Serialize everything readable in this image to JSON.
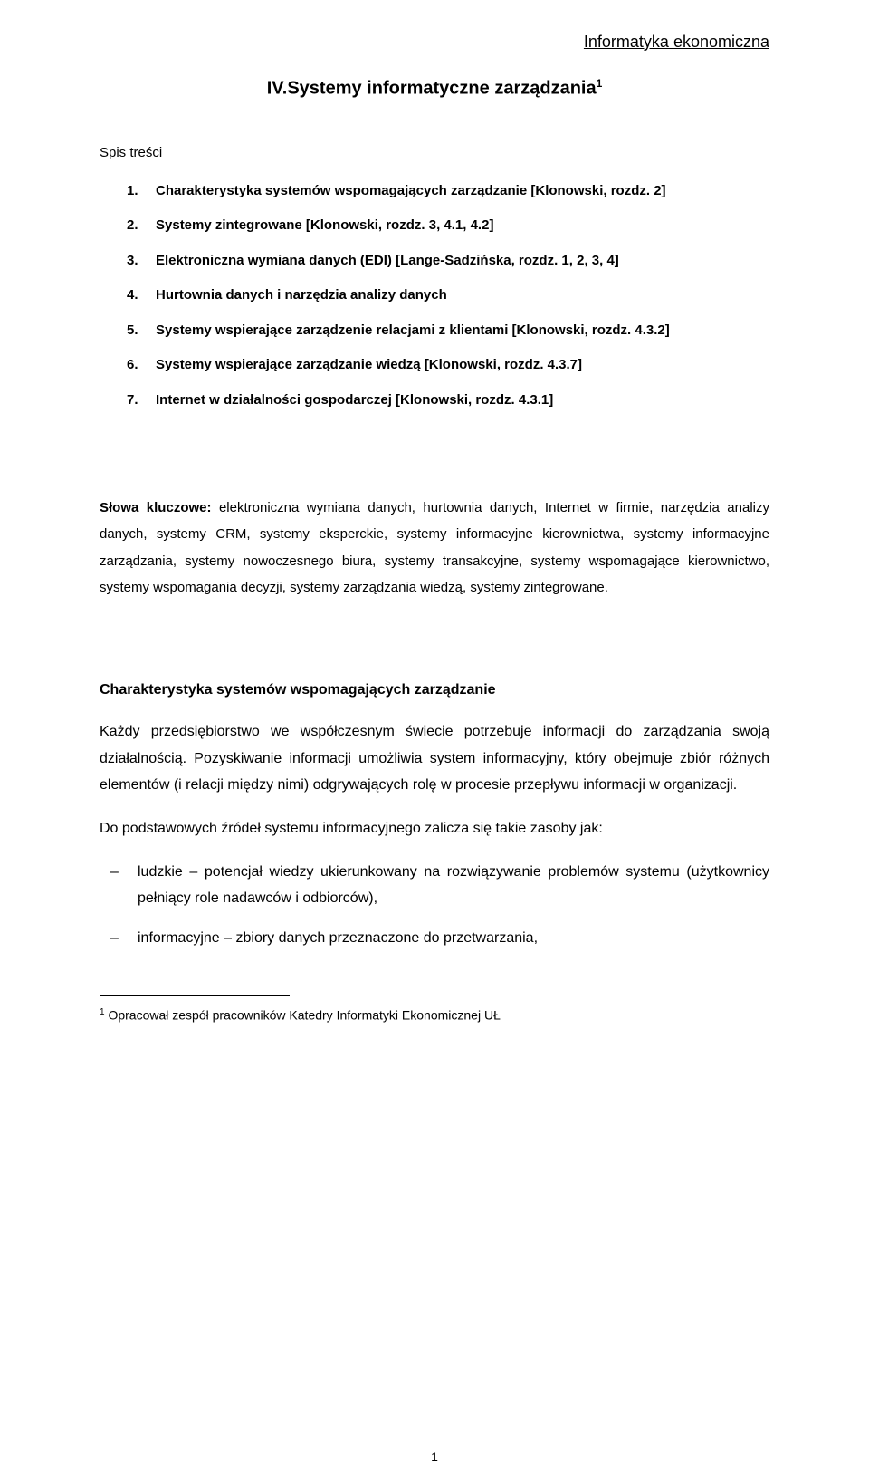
{
  "running_head": "Informatyka ekonomiczna",
  "chapter": {
    "number": "IV.",
    "title": "Systemy informatyczne zarządzania",
    "sup": "1"
  },
  "toc_label": "Spis treści",
  "toc": [
    {
      "n": "1.",
      "t": "Charakterystyka systemów wspomagających zarządzanie [Klonowski, rozdz. 2]"
    },
    {
      "n": "2.",
      "t": "Systemy zintegrowane [Klonowski, rozdz. 3, 4.1, 4.2]"
    },
    {
      "n": "3.",
      "t": "Elektroniczna wymiana danych (EDI) [Lange-Sadzińska, rozdz. 1, 2, 3, 4]"
    },
    {
      "n": "4.",
      "t": "Hurtownia danych i narzędzia analizy danych"
    },
    {
      "n": "5.",
      "t": "Systemy wspierające zarządzenie relacjami z klientami [Klonowski, rozdz. 4.3.2]"
    },
    {
      "n": "6.",
      "t": "Systemy wspierające zarządzanie wiedzą [Klonowski, rozdz. 4.3.7]"
    },
    {
      "n": "7.",
      "t": "Internet w działalności gospodarczej [Klonowski, rozdz. 4.3.1]"
    }
  ],
  "keywords_label": "Słowa kluczowe: ",
  "keywords_text": "elektroniczna wymiana danych, hurtownia danych, Internet w firmie, narzędzia analizy danych, systemy CRM, systemy eksperckie, systemy informacyjne kierownictwa, systemy informacyjne zarządzania, systemy nowoczesnego biura, systemy transakcyjne, systemy wspomagające kierownictwo, systemy wspomagania decyzji, systemy zarządzania wiedzą, systemy zintegrowane.",
  "section_heading": "Charakterystyka systemów wspomagających zarządzanie",
  "para1": "Każdy przedsiębiorstwo we współczesnym świecie potrzebuje informacji do zarządzania swoją działalnością. Pozyskiwanie informacji umożliwia system informacyjny, który obejmuje zbiór różnych elementów (i relacji między nimi) odgrywających rolę w procesie przepływu informacji w organizacji.",
  "para2": "Do podstawowych źródeł systemu informacyjnego zalicza się takie zasoby jak:",
  "bullets": [
    "ludzkie – potencjał wiedzy ukierunkowany na rozwiązywanie problemów systemu (użytkownicy pełniący role nadawców i odbiorców),",
    "informacyjne – zbiory danych przeznaczone do przetwarzania,"
  ],
  "footnote": {
    "mark": "1",
    "text": " Opracował zespół pracowników Katedry Informatyki Ekonomicznej UŁ"
  },
  "page_number": "1",
  "colors": {
    "text": "#000000",
    "background": "#ffffff"
  },
  "fontsizes": {
    "running_head": 18,
    "chapter": 20,
    "toc_label": 15,
    "toc_item": 15,
    "keywords": 15,
    "heading": 16,
    "body": 16,
    "footnote": 14,
    "pagenum": 14
  }
}
